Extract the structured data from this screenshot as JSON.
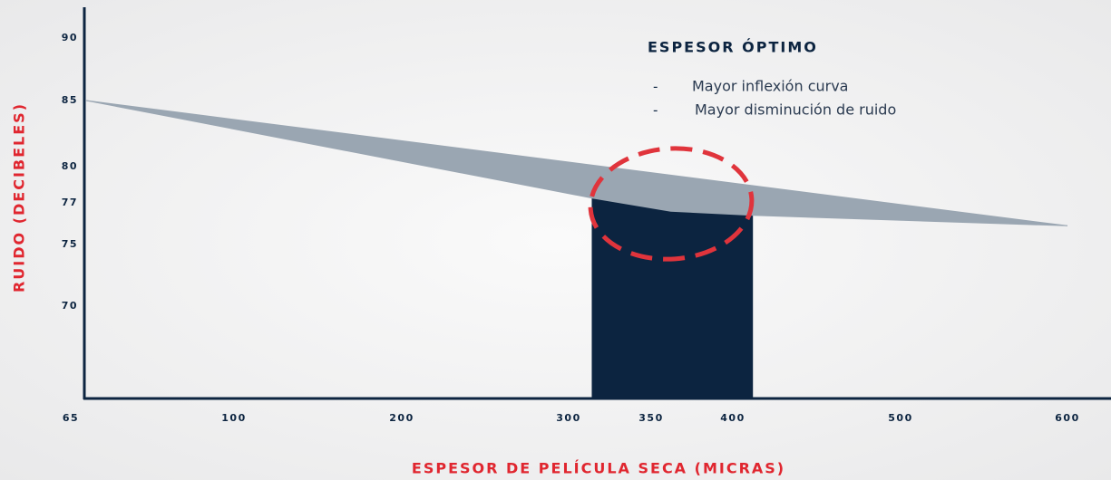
{
  "chart_data": {
    "type": "area",
    "ylabel": "RUIDO (DECIBELES)",
    "xlabel": "ESPESOR DE PELÍCULA SECA (MICRAS)",
    "xticks": [
      65,
      100,
      200,
      300,
      350,
      400,
      500,
      600
    ],
    "yticks": [
      90,
      85,
      80,
      77,
      75,
      70
    ],
    "series": [
      {
        "color": "#9aa6b2",
        "x": [
          65,
          600
        ],
        "values": [
          85,
          75.9
        ]
      },
      {
        "color": "#9aa6b2",
        "x": [
          65,
          314,
          362,
          412,
          600
        ],
        "values": [
          85,
          77.4,
          76.6,
          76.4,
          75.9
        ]
      }
    ],
    "highlight": {
      "x": [
        314,
        412
      ],
      "color": "#0c2440"
    },
    "annotation": {
      "title": "ESPESOR ÓPTIMO",
      "items": [
        "Mayor inflexión curva",
        "Mayor disminución de ruido"
      ],
      "color": "#e0343c"
    }
  }
}
